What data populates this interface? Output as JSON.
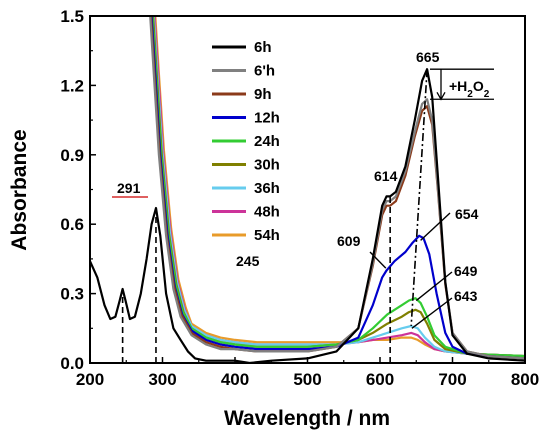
{
  "chart_data": {
    "type": "line",
    "title": "",
    "xlabel": "Wavelength / nm",
    "ylabel": "Absorbance",
    "xlim": [
      200,
      800
    ],
    "ylim": [
      0,
      1.5
    ],
    "xticks": [
      200,
      300,
      400,
      500,
      600,
      700,
      800
    ],
    "yticks": [
      0.0,
      0.3,
      0.6,
      0.9,
      1.2,
      1.5
    ],
    "ytick_labels": [
      "0.0",
      "0.3",
      "0.6",
      "0.9",
      "1.2",
      "1.5"
    ],
    "grid": false,
    "legend_position": "top-center",
    "series": [
      {
        "name": "6h",
        "color": "#000000",
        "points": [
          [
            200,
            0.44
          ],
          [
            210,
            0.37
          ],
          [
            220,
            0.25
          ],
          [
            228,
            0.19
          ],
          [
            235,
            0.2
          ],
          [
            241,
            0.27
          ],
          [
            245,
            0.32
          ],
          [
            249,
            0.27
          ],
          [
            255,
            0.19
          ],
          [
            262,
            0.2
          ],
          [
            270,
            0.3
          ],
          [
            278,
            0.45
          ],
          [
            285,
            0.6
          ],
          [
            291,
            0.67
          ],
          [
            297,
            0.55
          ],
          [
            305,
            0.3
          ],
          [
            315,
            0.15
          ],
          [
            325,
            0.1
          ],
          [
            335,
            0.05
          ],
          [
            345,
            0.02
          ],
          [
            360,
            0.01
          ],
          [
            400,
            0.01
          ],
          [
            420,
            0.0
          ],
          [
            450,
            0.01
          ],
          [
            500,
            0.02
          ],
          [
            540,
            0.05
          ],
          [
            570,
            0.15
          ],
          [
            590,
            0.45
          ],
          [
            603,
            0.68
          ],
          [
            609,
            0.72
          ],
          [
            614,
            0.72
          ],
          [
            622,
            0.74
          ],
          [
            635,
            0.85
          ],
          [
            648,
            1.05
          ],
          [
            658,
            1.22
          ],
          [
            665,
            1.27
          ],
          [
            672,
            1.15
          ],
          [
            680,
            0.8
          ],
          [
            690,
            0.35
          ],
          [
            700,
            0.12
          ],
          [
            720,
            0.04
          ],
          [
            750,
            0.02
          ],
          [
            800,
            0.01
          ]
        ]
      },
      {
        "name": "6'h",
        "color": "#808080",
        "points": [
          [
            283,
            1.5
          ],
          [
            288,
            1.25
          ],
          [
            295,
            0.9
          ],
          [
            305,
            0.55
          ],
          [
            315,
            0.32
          ],
          [
            325,
            0.2
          ],
          [
            340,
            0.12
          ],
          [
            360,
            0.08
          ],
          [
            380,
            0.06
          ],
          [
            400,
            0.06
          ],
          [
            430,
            0.05
          ],
          [
            460,
            0.05
          ],
          [
            500,
            0.05
          ],
          [
            540,
            0.07
          ],
          [
            570,
            0.15
          ],
          [
            590,
            0.43
          ],
          [
            603,
            0.66
          ],
          [
            609,
            0.7
          ],
          [
            614,
            0.7
          ],
          [
            622,
            0.72
          ],
          [
            635,
            0.83
          ],
          [
            648,
            1.0
          ],
          [
            658,
            1.12
          ],
          [
            665,
            1.14
          ],
          [
            672,
            1.05
          ],
          [
            680,
            0.75
          ],
          [
            690,
            0.35
          ],
          [
            700,
            0.13
          ],
          [
            720,
            0.05
          ],
          [
            750,
            0.03
          ],
          [
            800,
            0.02
          ]
        ]
      },
      {
        "name": "9h",
        "color": "#8B3A1A",
        "points": [
          [
            284,
            1.5
          ],
          [
            289,
            1.25
          ],
          [
            296,
            0.9
          ],
          [
            306,
            0.55
          ],
          [
            316,
            0.33
          ],
          [
            326,
            0.21
          ],
          [
            340,
            0.13
          ],
          [
            360,
            0.09
          ],
          [
            380,
            0.07
          ],
          [
            400,
            0.06
          ],
          [
            430,
            0.05
          ],
          [
            460,
            0.05
          ],
          [
            500,
            0.05
          ],
          [
            540,
            0.07
          ],
          [
            570,
            0.15
          ],
          [
            590,
            0.42
          ],
          [
            603,
            0.64
          ],
          [
            609,
            0.68
          ],
          [
            614,
            0.68
          ],
          [
            622,
            0.7
          ],
          [
            635,
            0.81
          ],
          [
            648,
            0.98
          ],
          [
            658,
            1.09
          ],
          [
            665,
            1.11
          ],
          [
            672,
            1.03
          ],
          [
            680,
            0.74
          ],
          [
            690,
            0.34
          ],
          [
            700,
            0.13
          ],
          [
            720,
            0.05
          ],
          [
            750,
            0.03
          ],
          [
            800,
            0.02
          ]
        ]
      },
      {
        "name": "12h",
        "color": "#0000CC",
        "points": [
          [
            285,
            1.5
          ],
          [
            290,
            1.25
          ],
          [
            297,
            0.9
          ],
          [
            307,
            0.55
          ],
          [
            317,
            0.33
          ],
          [
            327,
            0.21
          ],
          [
            340,
            0.14
          ],
          [
            360,
            0.1
          ],
          [
            380,
            0.08
          ],
          [
            400,
            0.07
          ],
          [
            430,
            0.06
          ],
          [
            460,
            0.06
          ],
          [
            500,
            0.06
          ],
          [
            540,
            0.07
          ],
          [
            570,
            0.11
          ],
          [
            590,
            0.25
          ],
          [
            603,
            0.37
          ],
          [
            609,
            0.4
          ],
          [
            620,
            0.44
          ],
          [
            635,
            0.48
          ],
          [
            645,
            0.52
          ],
          [
            654,
            0.55
          ],
          [
            660,
            0.54
          ],
          [
            668,
            0.47
          ],
          [
            678,
            0.3
          ],
          [
            690,
            0.13
          ],
          [
            700,
            0.07
          ],
          [
            720,
            0.04
          ],
          [
            750,
            0.03
          ],
          [
            800,
            0.02
          ]
        ]
      },
      {
        "name": "24h",
        "color": "#33CC33",
        "points": [
          [
            286,
            1.5
          ],
          [
            291,
            1.25
          ],
          [
            298,
            0.9
          ],
          [
            308,
            0.56
          ],
          [
            318,
            0.34
          ],
          [
            328,
            0.22
          ],
          [
            340,
            0.15
          ],
          [
            360,
            0.11
          ],
          [
            380,
            0.09
          ],
          [
            400,
            0.08
          ],
          [
            430,
            0.07
          ],
          [
            460,
            0.07
          ],
          [
            500,
            0.07
          ],
          [
            540,
            0.08
          ],
          [
            570,
            0.1
          ],
          [
            590,
            0.15
          ],
          [
            610,
            0.21
          ],
          [
            630,
            0.25
          ],
          [
            640,
            0.27
          ],
          [
            649,
            0.28
          ],
          [
            656,
            0.26
          ],
          [
            665,
            0.2
          ],
          [
            675,
            0.12
          ],
          [
            690,
            0.07
          ],
          [
            720,
            0.04
          ],
          [
            800,
            0.03
          ]
        ]
      },
      {
        "name": "30h",
        "color": "#808000",
        "points": [
          [
            287,
            1.5
          ],
          [
            292,
            1.25
          ],
          [
            299,
            0.9
          ],
          [
            309,
            0.56
          ],
          [
            319,
            0.34
          ],
          [
            329,
            0.22
          ],
          [
            340,
            0.15
          ],
          [
            360,
            0.11
          ],
          [
            380,
            0.09
          ],
          [
            400,
            0.08
          ],
          [
            430,
            0.07
          ],
          [
            460,
            0.07
          ],
          [
            500,
            0.07
          ],
          [
            540,
            0.08
          ],
          [
            570,
            0.1
          ],
          [
            590,
            0.13
          ],
          [
            610,
            0.17
          ],
          [
            630,
            0.2
          ],
          [
            640,
            0.22
          ],
          [
            649,
            0.23
          ],
          [
            656,
            0.22
          ],
          [
            665,
            0.17
          ],
          [
            675,
            0.1
          ],
          [
            690,
            0.06
          ],
          [
            720,
            0.04
          ],
          [
            800,
            0.03
          ]
        ]
      },
      {
        "name": "36h",
        "color": "#66CCEE",
        "points": [
          [
            288,
            1.5
          ],
          [
            293,
            1.25
          ],
          [
            300,
            0.91
          ],
          [
            310,
            0.57
          ],
          [
            320,
            0.35
          ],
          [
            330,
            0.23
          ],
          [
            340,
            0.16
          ],
          [
            360,
            0.12
          ],
          [
            380,
            0.1
          ],
          [
            400,
            0.09
          ],
          [
            430,
            0.08
          ],
          [
            460,
            0.08
          ],
          [
            500,
            0.08
          ],
          [
            540,
            0.08
          ],
          [
            570,
            0.09
          ],
          [
            590,
            0.11
          ],
          [
            610,
            0.13
          ],
          [
            630,
            0.15
          ],
          [
            643,
            0.16
          ],
          [
            652,
            0.15
          ],
          [
            662,
            0.11
          ],
          [
            675,
            0.07
          ],
          [
            690,
            0.05
          ],
          [
            720,
            0.04
          ],
          [
            800,
            0.03
          ]
        ]
      },
      {
        "name": "48h",
        "color": "#CC3399",
        "points": [
          [
            289,
            1.5
          ],
          [
            294,
            1.25
          ],
          [
            301,
            0.91
          ],
          [
            311,
            0.57
          ],
          [
            321,
            0.35
          ],
          [
            331,
            0.23
          ],
          [
            340,
            0.16
          ],
          [
            360,
            0.12
          ],
          [
            380,
            0.1
          ],
          [
            400,
            0.09
          ],
          [
            430,
            0.08
          ],
          [
            460,
            0.08
          ],
          [
            500,
            0.08
          ],
          [
            540,
            0.08
          ],
          [
            570,
            0.09
          ],
          [
            590,
            0.1
          ],
          [
            610,
            0.11
          ],
          [
            630,
            0.12
          ],
          [
            643,
            0.13
          ],
          [
            652,
            0.12
          ],
          [
            662,
            0.09
          ],
          [
            675,
            0.06
          ],
          [
            690,
            0.05
          ],
          [
            720,
            0.04
          ],
          [
            800,
            0.03
          ]
        ]
      },
      {
        "name": "54h",
        "color": "#E89B2A",
        "points": [
          [
            290,
            1.5
          ],
          [
            295,
            1.25
          ],
          [
            302,
            0.92
          ],
          [
            312,
            0.58
          ],
          [
            322,
            0.36
          ],
          [
            332,
            0.24
          ],
          [
            340,
            0.17
          ],
          [
            360,
            0.13
          ],
          [
            380,
            0.11
          ],
          [
            400,
            0.1
          ],
          [
            430,
            0.09
          ],
          [
            460,
            0.09
          ],
          [
            500,
            0.09
          ],
          [
            540,
            0.09
          ],
          [
            570,
            0.09
          ],
          [
            590,
            0.1
          ],
          [
            610,
            0.1
          ],
          [
            630,
            0.11
          ],
          [
            643,
            0.11
          ],
          [
            652,
            0.1
          ],
          [
            662,
            0.08
          ],
          [
            675,
            0.06
          ],
          [
            690,
            0.05
          ],
          [
            720,
            0.04
          ],
          [
            800,
            0.03
          ]
        ]
      }
    ],
    "annotations": [
      {
        "text": "245",
        "x": 245,
        "y": 0.32
      },
      {
        "text": "291",
        "x": 291,
        "y": 0.67
      },
      {
        "text": "614",
        "x": 614,
        "y": 0.72
      },
      {
        "text": "665",
        "x": 665,
        "y": 1.27
      },
      {
        "text": "654",
        "x": 654,
        "y": 0.55
      },
      {
        "text": "609",
        "x": 609,
        "y": 0.4
      },
      {
        "text": "649",
        "x": 649,
        "y": 0.28
      },
      {
        "text": "643",
        "x": 643,
        "y": 0.16
      }
    ],
    "h2o2_label": {
      "prefix": "+H",
      "sub1": "2",
      "mid": "O",
      "sub2": "2"
    }
  }
}
